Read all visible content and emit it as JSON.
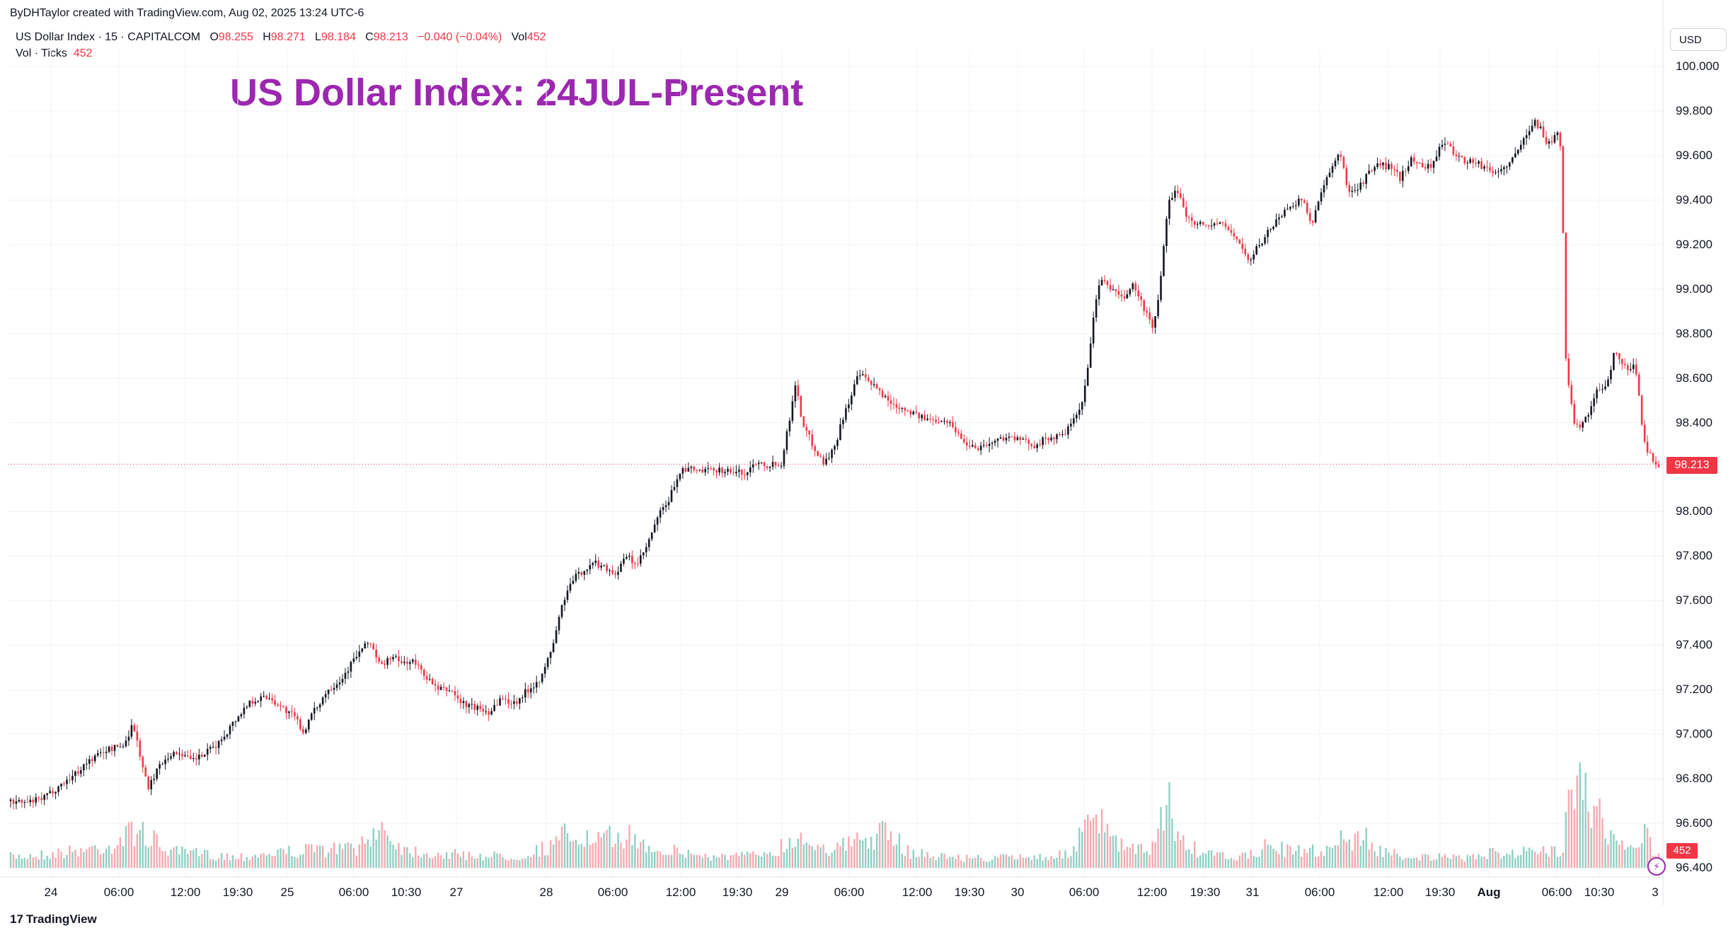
{
  "header": {
    "byline": "ByDHTaylor created with TradingView.com, Aug 02, 2025 13:24 UTC-6",
    "symbol": "US Dollar Index · 15 · CAPITALCOM",
    "o_label": "O",
    "o_value": "98.255",
    "h_label": "H",
    "h_value": "98.271",
    "l_label": "L",
    "l_value": "98.184",
    "c_label": "C",
    "c_value": "98.213",
    "change": "−0.040 (−0.04%)",
    "vol_label": "Vol",
    "vol_value": "452",
    "vol_ticks_label": "Vol · Ticks",
    "vol_ticks_value": "452"
  },
  "currency_button": "USD",
  "price_tag": "98.213",
  "volume_tag": "452",
  "branding": {
    "logo_text": "TradingView",
    "logo_mark": "17"
  },
  "colors": {
    "up": "#089981",
    "down": "#f23645",
    "title": "#9c27b0",
    "grid": "#f0f3fa",
    "vol_up": "#8fd0c4",
    "vol_down": "#f7a9b0"
  },
  "chart_data": {
    "type": "candlestick",
    "title": "US Dollar Index: 24JUL-Present",
    "y_axis": {
      "range": [
        96.4,
        100.0
      ],
      "ticks": [
        "100.000",
        "99.800",
        "99.600",
        "99.400",
        "99.200",
        "99.000",
        "98.800",
        "98.600",
        "98.400",
        "98.200",
        "98.000",
        "97.800",
        "97.600",
        "97.400",
        "97.200",
        "97.000",
        "96.800",
        "96.600",
        "96.400"
      ]
    },
    "x_ticks": [
      {
        "label": "24",
        "bold": false
      },
      {
        "label": "06:00",
        "bold": false
      },
      {
        "label": "12:00",
        "bold": false
      },
      {
        "label": "19:30",
        "bold": false
      },
      {
        "label": "25",
        "bold": false
      },
      {
        "label": "06:00",
        "bold": false
      },
      {
        "label": "10:30",
        "bold": false
      },
      {
        "label": "27",
        "bold": false
      },
      {
        "label": "28",
        "bold": false
      },
      {
        "label": "06:00",
        "bold": false
      },
      {
        "label": "12:00",
        "bold": false
      },
      {
        "label": "19:30",
        "bold": false
      },
      {
        "label": "29",
        "bold": false
      },
      {
        "label": "06:00",
        "bold": false
      },
      {
        "label": "12:00",
        "bold": false
      },
      {
        "label": "19:30",
        "bold": false
      },
      {
        "label": "30",
        "bold": false
      },
      {
        "label": "06:00",
        "bold": false
      },
      {
        "label": "12:00",
        "bold": false
      },
      {
        "label": "19:30",
        "bold": false
      },
      {
        "label": "31",
        "bold": false
      },
      {
        "label": "06:00",
        "bold": false
      },
      {
        "label": "12:00",
        "bold": false
      },
      {
        "label": "19:30",
        "bold": false
      },
      {
        "label": "Aug",
        "bold": true
      },
      {
        "label": "06:00",
        "bold": false
      },
      {
        "label": "10:30",
        "bold": false
      },
      {
        "label": "3",
        "bold": false
      }
    ],
    "last_price": 98.213,
    "close_path": [
      [
        0,
        96.7
      ],
      [
        25,
        96.69
      ],
      [
        50,
        96.71
      ],
      [
        70,
        96.76
      ],
      [
        95,
        96.82
      ],
      [
        115,
        96.88
      ],
      [
        140,
        96.93
      ],
      [
        165,
        96.95
      ],
      [
        178,
        97.05
      ],
      [
        190,
        96.88
      ],
      [
        200,
        96.75
      ],
      [
        210,
        96.83
      ],
      [
        225,
        96.9
      ],
      [
        245,
        96.92
      ],
      [
        260,
        96.88
      ],
      [
        280,
        96.91
      ],
      [
        300,
        96.96
      ],
      [
        320,
        97.05
      ],
      [
        345,
        97.15
      ],
      [
        370,
        97.17
      ],
      [
        390,
        97.12
      ],
      [
        410,
        97.07
      ],
      [
        420,
        97.01
      ],
      [
        435,
        97.1
      ],
      [
        455,
        97.2
      ],
      [
        475,
        97.25
      ],
      [
        495,
        97.35
      ],
      [
        515,
        97.42
      ],
      [
        530,
        97.3
      ],
      [
        545,
        97.35
      ],
      [
        560,
        97.32
      ],
      [
        575,
        97.33
      ],
      [
        590,
        97.28
      ],
      [
        610,
        97.2
      ],
      [
        630,
        97.2
      ],
      [
        645,
        97.14
      ],
      [
        665,
        97.12
      ],
      [
        685,
        97.1
      ],
      [
        700,
        97.16
      ],
      [
        720,
        97.14
      ],
      [
        740,
        97.2
      ],
      [
        760,
        97.26
      ],
      [
        775,
        97.4
      ],
      [
        790,
        97.6
      ],
      [
        805,
        97.7
      ],
      [
        820,
        97.74
      ],
      [
        835,
        97.77
      ],
      [
        850,
        97.75
      ],
      [
        865,
        97.72
      ],
      [
        880,
        97.8
      ],
      [
        895,
        97.76
      ],
      [
        910,
        97.85
      ],
      [
        925,
        97.98
      ],
      [
        940,
        98.05
      ],
      [
        955,
        98.18
      ],
      [
        970,
        98.19
      ],
      [
        990,
        98.18
      ],
      [
        1010,
        98.19
      ],
      [
        1030,
        98.18
      ],
      [
        1050,
        98.17
      ],
      [
        1065,
        98.23
      ],
      [
        1080,
        98.21
      ],
      [
        1100,
        98.22
      ],
      [
        1110,
        98.38
      ],
      [
        1120,
        98.58
      ],
      [
        1130,
        98.4
      ],
      [
        1145,
        98.3
      ],
      [
        1160,
        98.22
      ],
      [
        1175,
        98.28
      ],
      [
        1190,
        98.45
      ],
      [
        1200,
        98.52
      ],
      [
        1210,
        98.62
      ],
      [
        1225,
        98.58
      ],
      [
        1240,
        98.54
      ],
      [
        1255,
        98.49
      ],
      [
        1270,
        98.47
      ],
      [
        1285,
        98.45
      ],
      [
        1300,
        98.42
      ],
      [
        1315,
        98.41
      ],
      [
        1330,
        98.42
      ],
      [
        1345,
        98.38
      ],
      [
        1360,
        98.31
      ],
      [
        1380,
        98.29
      ],
      [
        1400,
        98.31
      ],
      [
        1420,
        98.34
      ],
      [
        1440,
        98.32
      ],
      [
        1460,
        98.3
      ],
      [
        1480,
        98.33
      ],
      [
        1500,
        98.34
      ],
      [
        1515,
        98.4
      ],
      [
        1530,
        98.5
      ],
      [
        1545,
        98.9
      ],
      [
        1555,
        99.05
      ],
      [
        1570,
        99.0
      ],
      [
        1585,
        98.95
      ],
      [
        1600,
        99.02
      ],
      [
        1615,
        98.92
      ],
      [
        1630,
        98.82
      ],
      [
        1640,
        99.05
      ],
      [
        1650,
        99.38
      ],
      [
        1665,
        99.45
      ],
      [
        1675,
        99.33
      ],
      [
        1690,
        99.3
      ],
      [
        1705,
        99.28
      ],
      [
        1720,
        99.3
      ],
      [
        1735,
        99.27
      ],
      [
        1750,
        99.22
      ],
      [
        1765,
        99.12
      ],
      [
        1780,
        99.2
      ],
      [
        1795,
        99.27
      ],
      [
        1810,
        99.33
      ],
      [
        1825,
        99.38
      ],
      [
        1840,
        99.4
      ],
      [
        1855,
        99.3
      ],
      [
        1870,
        99.45
      ],
      [
        1885,
        99.55
      ],
      [
        1895,
        99.62
      ],
      [
        1905,
        99.45
      ],
      [
        1920,
        99.45
      ],
      [
        1935,
        99.52
      ],
      [
        1950,
        99.56
      ],
      [
        1965,
        99.55
      ],
      [
        1980,
        99.5
      ],
      [
        1995,
        99.58
      ],
      [
        2010,
        99.56
      ],
      [
        2025,
        99.55
      ],
      [
        2040,
        99.66
      ],
      [
        2055,
        99.62
      ],
      [
        2070,
        99.58
      ],
      [
        2085,
        99.57
      ],
      [
        2100,
        99.55
      ],
      [
        2115,
        99.52
      ],
      [
        2130,
        99.55
      ],
      [
        2145,
        99.6
      ],
      [
        2160,
        99.7
      ],
      [
        2170,
        99.76
      ],
      [
        2180,
        99.72
      ],
      [
        2190,
        99.65
      ],
      [
        2200,
        99.68
      ],
      [
        2205,
        99.72
      ],
      [
        2210,
        99.6
      ],
      [
        2215,
        98.72
      ],
      [
        2222,
        98.5
      ],
      [
        2230,
        98.38
      ],
      [
        2240,
        98.4
      ],
      [
        2250,
        98.46
      ],
      [
        2262,
        98.55
      ],
      [
        2275,
        98.58
      ],
      [
        2285,
        98.72
      ],
      [
        2295,
        98.68
      ],
      [
        2305,
        98.62
      ],
      [
        2310,
        98.67
      ],
      [
        2318,
        98.58
      ],
      [
        2325,
        98.35
      ],
      [
        2333,
        98.26
      ],
      [
        2345,
        98.213
      ]
    ],
    "volume_path": [
      [
        0,
        96.47
      ],
      [
        60,
        96.49
      ],
      [
        110,
        96.52
      ],
      [
        150,
        96.55
      ],
      [
        178,
        96.65
      ],
      [
        190,
        96.62
      ],
      [
        200,
        96.58
      ],
      [
        230,
        96.5
      ],
      [
        270,
        96.49
      ],
      [
        320,
        96.47
      ],
      [
        380,
        96.5
      ],
      [
        420,
        96.51
      ],
      [
        470,
        96.52
      ],
      [
        510,
        96.55
      ],
      [
        520,
        96.7
      ],
      [
        540,
        96.6
      ],
      [
        560,
        96.52
      ],
      [
        600,
        96.49
      ],
      [
        660,
        96.48
      ],
      [
        720,
        96.47
      ],
      [
        775,
        96.55
      ],
      [
        790,
        96.62
      ],
      [
        830,
        96.56
      ],
      [
        860,
        96.6
      ],
      [
        870,
        96.62
      ],
      [
        900,
        96.55
      ],
      [
        950,
        96.5
      ],
      [
        1000,
        96.47
      ],
      [
        1060,
        96.48
      ],
      [
        1110,
        96.56
      ],
      [
        1120,
        96.6
      ],
      [
        1170,
        96.52
      ],
      [
        1200,
        96.56
      ],
      [
        1245,
        96.62
      ],
      [
        1280,
        96.5
      ],
      [
        1330,
        96.47
      ],
      [
        1380,
        96.46
      ],
      [
        1450,
        96.47
      ],
      [
        1500,
        96.48
      ],
      [
        1545,
        96.72
      ],
      [
        1565,
        96.58
      ],
      [
        1600,
        96.5
      ],
      [
        1630,
        96.55
      ],
      [
        1640,
        96.8
      ],
      [
        1650,
        96.82
      ],
      [
        1660,
        96.58
      ],
      [
        1700,
        96.48
      ],
      [
        1760,
        96.47
      ],
      [
        1790,
        96.55
      ],
      [
        1820,
        96.5
      ],
      [
        1880,
        96.52
      ],
      [
        1885,
        96.62
      ],
      [
        1910,
        96.55
      ],
      [
        1920,
        96.62
      ],
      [
        1950,
        96.5
      ],
      [
        2000,
        96.47
      ],
      [
        2060,
        96.46
      ],
      [
        2120,
        96.5
      ],
      [
        2160,
        96.5
      ],
      [
        2200,
        96.5
      ],
      [
        2210,
        96.55
      ],
      [
        2215,
        97.3
      ],
      [
        2222,
        97.05
      ],
      [
        2232,
        96.95
      ],
      [
        2240,
        96.95
      ],
      [
        2250,
        96.8
      ],
      [
        2262,
        96.7
      ],
      [
        2275,
        96.6
      ],
      [
        2300,
        96.5
      ],
      [
        2320,
        96.55
      ],
      [
        2325,
        96.7
      ],
      [
        2340,
        96.47
      ]
    ]
  }
}
